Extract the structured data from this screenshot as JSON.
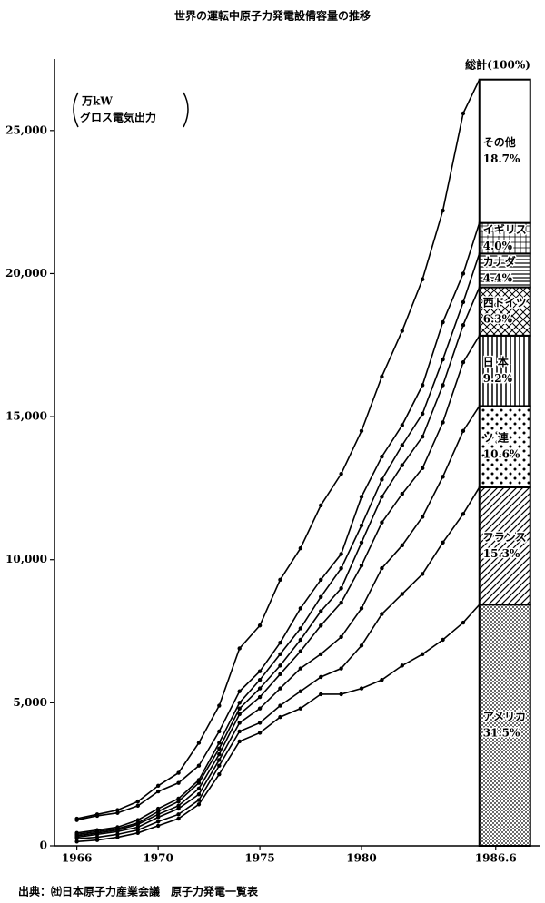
{
  "chart_data": {
    "type": "line",
    "stacked": true,
    "title": "世界の運転中原子力発電設備容量の推移",
    "unit_label": [
      "万kW",
      "グロス電気出力"
    ],
    "total_label": "総計(100%)",
    "source": "出典：㈳日本原子力産業会議　原子力発電一覧表",
    "x": [
      1966,
      1967,
      1968,
      1969,
      1970,
      1971,
      1972,
      1973,
      1974,
      1975,
      1976,
      1977,
      1978,
      1979,
      1980,
      1981,
      1982,
      1983,
      1984,
      1985,
      1986.6
    ],
    "xlim": [
      1964.9,
      1988.8
    ],
    "xticks": [
      1966,
      1970,
      1975,
      1980,
      1986.6
    ],
    "ylim": [
      0,
      27500
    ],
    "yticks": [
      0,
      {
        "value": 5000,
        "label": "5,000"
      },
      {
        "value": 10000,
        "label": "10,000"
      },
      {
        "value": 15000,
        "label": "15,000"
      },
      {
        "value": 20000,
        "label": "20,000"
      },
      {
        "value": 25000,
        "label": "25,000"
      }
    ],
    "series": [
      {
        "name": "アメリカ",
        "color": "#000000",
        "pattern": "dense-dots",
        "share": {
          "value": 31.5,
          "label": "31.5%"
        },
        "values": [
          150,
          200,
          300,
          450,
          700,
          950,
          1450,
          2500,
          3650,
          3950,
          4500,
          4800,
          5300,
          5300,
          5500,
          5800,
          6300,
          6700,
          7200,
          7800,
          8430
        ]
      },
      {
        "name": "フランス",
        "color": "#000000",
        "pattern": "diagonal",
        "share": {
          "value": 15.3,
          "label": "15.3%"
        },
        "values": [
          100,
          100,
          100,
          100,
          150,
          150,
          150,
          300,
          350,
          350,
          400,
          600,
          600,
          900,
          1500,
          2300,
          2500,
          2800,
          3400,
          3800,
          4100
        ]
      },
      {
        "name": "ソ 連",
        "color": "#000000",
        "pattern": "sparse-dots",
        "share": {
          "value": 10.6,
          "label": "10.6%"
        },
        "values": [
          50,
          100,
          100,
          100,
          150,
          200,
          200,
          200,
          300,
          500,
          600,
          800,
          800,
          1100,
          1300,
          1600,
          1700,
          2000,
          2300,
          2900,
          2840
        ]
      },
      {
        "name": "日 本",
        "color": "#000000",
        "pattern": "vertical",
        "share": {
          "value": 9.2,
          "label": "9.2%"
        },
        "values": [
          50,
          50,
          50,
          100,
          100,
          100,
          200,
          200,
          300,
          400,
          500,
          600,
          1000,
          1200,
          1500,
          1600,
          1800,
          1700,
          1900,
          2400,
          2460
        ]
      },
      {
        "name": "西ドイツ",
        "color": "#000000",
        "pattern": "cross",
        "share": {
          "value": 6.3,
          "label": "6.3%"
        },
        "values": [
          50,
          50,
          50,
          50,
          100,
          150,
          200,
          200,
          200,
          300,
          300,
          400,
          500,
          500,
          800,
          900,
          1000,
          1100,
          1300,
          1300,
          1690
        ]
      },
      {
        "name": "カナダ",
        "color": "#000000",
        "pattern": "horizontal",
        "share": {
          "value": 4.4,
          "label": "4.4%"
        },
        "values": [
          50,
          50,
          50,
          100,
          100,
          100,
          100,
          200,
          200,
          300,
          400,
          400,
          500,
          700,
          600,
          600,
          700,
          800,
          900,
          800,
          1180
        ]
      },
      {
        "name": "イギリス",
        "color": "#000000",
        "pattern": "grid",
        "share": {
          "value": 4.0,
          "label": "4.0%"
        },
        "values": [
          450,
          500,
          500,
          500,
          600,
          550,
          500,
          400,
          400,
          300,
          400,
          700,
          600,
          500,
          1000,
          800,
          700,
          1000,
          1300,
          1000,
          1070
        ]
      },
      {
        "name": "その他",
        "color": "#000000",
        "pattern": "none",
        "share": {
          "value": 18.7,
          "label": "18.7%"
        },
        "values": [
          50,
          50,
          100,
          150,
          200,
          350,
          800,
          900,
          1500,
          1600,
          2200,
          2100,
          2600,
          2800,
          2300,
          2800,
          3300,
          3700,
          3900,
          5600,
          5010
        ]
      }
    ]
  }
}
